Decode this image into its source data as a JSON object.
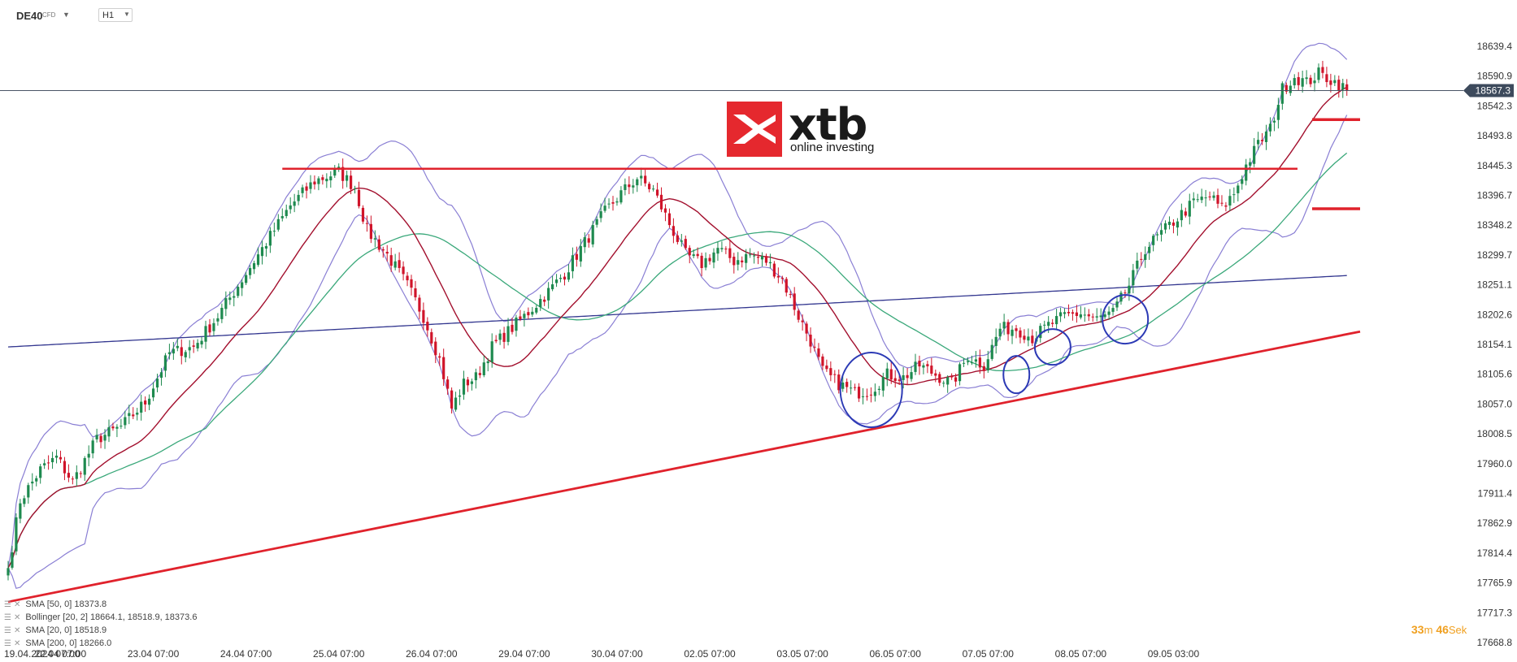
{
  "header": {
    "symbol": "DE40",
    "symbol_sub": "CFD",
    "timeframe": "H1"
  },
  "logo": {
    "brand": "xtb",
    "tagline": "online investing"
  },
  "indicators": [
    {
      "label": "SMA",
      "params": "[50, 0]",
      "values": "18373.8"
    },
    {
      "label": "Bollinger",
      "params": "[20, 2]",
      "values": "18664.1,  18518.9,  18373.6"
    },
    {
      "label": "SMA",
      "params": "[20, 0]",
      "values": "18518.9"
    },
    {
      "label": "SMA",
      "params": "[200, 0]",
      "values": "18266.0"
    }
  ],
  "countdown": {
    "minutes": "33",
    "m": "m",
    "seconds": "46",
    "s": "Sek"
  },
  "colors": {
    "up": "#1e8a4f",
    "down": "#d0142a",
    "sma20": "#a3102e",
    "sma50": "#3aa87a",
    "sma200": "#32368f",
    "bollinger": "#8a7fd4",
    "annotation": "#e0222c",
    "circle": "#2c3ab5"
  },
  "chart_data": {
    "type": "candlestick",
    "instrument": "DE40",
    "timeframe": "H1",
    "y_ticks": [
      "18639.4",
      "18590.9",
      "18542.3",
      "18493.8",
      "18445.3",
      "18396.7",
      "18348.2",
      "18299.7",
      "18251.1",
      "18202.6",
      "18154.1",
      "18105.6",
      "18057.0",
      "18008.5",
      "17960.0",
      "17911.4",
      "17862.9",
      "17814.4",
      "17765.9",
      "17717.3",
      "17668.8"
    ],
    "ylim": [
      17668.8,
      18639.4
    ],
    "x_ticks": [
      "19.04.2024  07:00",
      "22.04  07:00",
      "23.04  07:00",
      "24.04  07:00",
      "25.04  07:00",
      "26.04  07:00",
      "29.04  07:00",
      "30.04  07:00",
      "02.05  07:00",
      "03.05  07:00",
      "06.05  07:00",
      "07.05  07:00",
      "08.05  07:00",
      "09.05  03:00"
    ],
    "last_price": "18567.3",
    "price_anchors": [
      [
        0,
        17790
      ],
      [
        3,
        17900
      ],
      [
        8,
        17950
      ],
      [
        12,
        17970
      ],
      [
        16,
        17930
      ],
      [
        22,
        18000
      ],
      [
        28,
        18020
      ],
      [
        34,
        18060
      ],
      [
        40,
        18140
      ],
      [
        46,
        18150
      ],
      [
        52,
        18200
      ],
      [
        58,
        18260
      ],
      [
        64,
        18320
      ],
      [
        70,
        18380
      ],
      [
        76,
        18420
      ],
      [
        82,
        18435
      ],
      [
        86,
        18410
      ],
      [
        89,
        18340
      ],
      [
        94,
        18300
      ],
      [
        99,
        18250
      ],
      [
        103,
        18200
      ],
      [
        107,
        18130
      ],
      [
        110,
        18050
      ],
      [
        113,
        18090
      ],
      [
        116,
        18100
      ],
      [
        120,
        18150
      ],
      [
        124,
        18175
      ],
      [
        128,
        18200
      ],
      [
        134,
        18240
      ],
      [
        138,
        18270
      ],
      [
        143,
        18320
      ],
      [
        148,
        18370
      ],
      [
        152,
        18400
      ],
      [
        156,
        18425
      ],
      [
        160,
        18405
      ],
      [
        164,
        18350
      ],
      [
        168,
        18300
      ],
      [
        172,
        18285
      ],
      [
        176,
        18310
      ],
      [
        180,
        18290
      ],
      [
        184,
        18300
      ],
      [
        188,
        18290
      ],
      [
        192,
        18260
      ],
      [
        196,
        18200
      ],
      [
        199,
        18160
      ],
      [
        202,
        18110
      ],
      [
        206,
        18090
      ],
      [
        210,
        18075
      ],
      [
        214,
        18080
      ],
      [
        218,
        18105
      ],
      [
        222,
        18100
      ],
      [
        226,
        18120
      ],
      [
        230,
        18105
      ],
      [
        234,
        18090
      ],
      [
        238,
        18135
      ],
      [
        242,
        18120
      ],
      [
        246,
        18180
      ],
      [
        250,
        18180
      ],
      [
        254,
        18165
      ],
      [
        258,
        18185
      ],
      [
        262,
        18200
      ],
      [
        266,
        18205
      ],
      [
        270,
        18195
      ],
      [
        274,
        18205
      ],
      [
        278,
        18250
      ],
      [
        282,
        18310
      ],
      [
        286,
        18335
      ],
      [
        290,
        18360
      ],
      [
        294,
        18385
      ],
      [
        298,
        18395
      ],
      [
        301,
        18375
      ],
      [
        304,
        18400
      ],
      [
        307,
        18445
      ],
      [
        310,
        18480
      ],
      [
        313,
        18505
      ],
      [
        316,
        18570
      ],
      [
        319,
        18590
      ],
      [
        322,
        18580
      ],
      [
        325,
        18595
      ],
      [
        328,
        18585
      ],
      [
        330,
        18578
      ],
      [
        332,
        18567.3
      ]
    ],
    "resistance_level": 18440,
    "support_line": {
      "from": [
        "19.04.2024 07:00",
        17735
      ],
      "to": [
        "08.05 07:00",
        18175
      ]
    },
    "target_markers": [
      18520,
      18375
    ],
    "highlighted_zones": [
      "02.05",
      "03.05",
      "03.05",
      "06.05"
    ]
  }
}
